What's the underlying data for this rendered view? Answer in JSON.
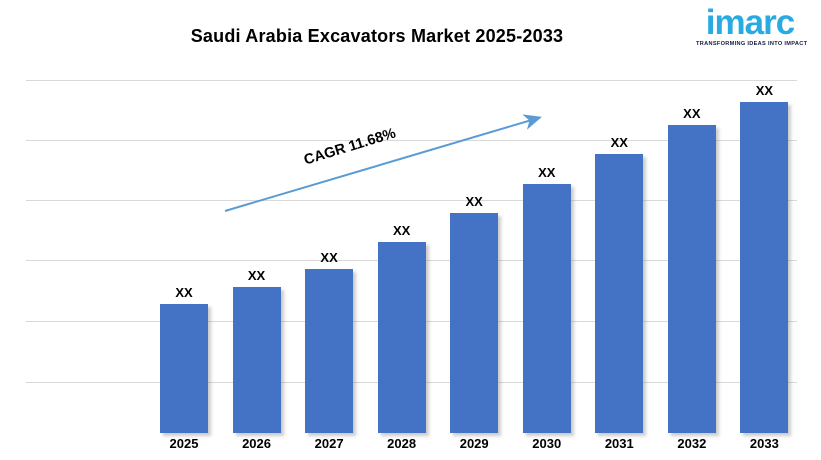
{
  "logo": {
    "name": "imarc",
    "tagline": "TRANSFORMING IDEAS INTO IMPACT"
  },
  "chart_data": {
    "type": "bar",
    "title": "Saudi Arabia Excavators Market 2025-2033",
    "categories": [
      "2025",
      "2026",
      "2027",
      "2028",
      "2029",
      "2030",
      "2031",
      "2032",
      "2033"
    ],
    "bar_labels": [
      "XX",
      "XX",
      "XX",
      "XX",
      "XX",
      "XX",
      "XX",
      "XX",
      "XX"
    ],
    "values_hidden": true,
    "relative_heights": [
      39.0,
      44.1,
      49.5,
      57.7,
      66.5,
      75.2,
      84.3,
      93.1,
      100
    ],
    "annotation": "CAGR 11.68%",
    "xlabel": "",
    "ylabel": "",
    "legend": false,
    "grid": true,
    "bar_color": "#4472C4",
    "arrow_color": "#5B9BD5",
    "gridline_color": "#D9D9D9",
    "label_color": "#000000"
  }
}
